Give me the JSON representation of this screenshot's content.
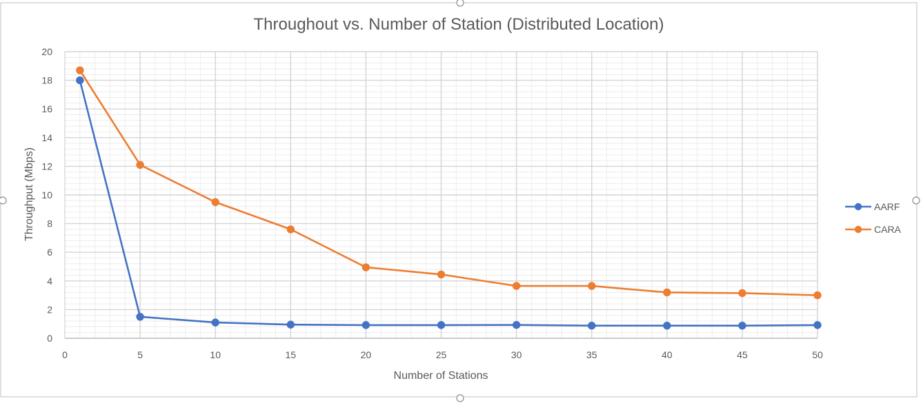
{
  "chart_data": {
    "type": "line",
    "title": "Throughout vs. Number of Station (Distributed Location)",
    "xlabel": "Number of Stations",
    "ylabel": "Throughput (Mbps)",
    "xlim": [
      0,
      50
    ],
    "ylim": [
      0,
      20
    ],
    "x_ticks": [
      0,
      5,
      10,
      15,
      20,
      25,
      30,
      35,
      40,
      45,
      50
    ],
    "y_ticks": [
      0,
      2,
      4,
      6,
      8,
      10,
      12,
      14,
      16,
      18,
      20
    ],
    "grid": true,
    "legend_position": "right",
    "x": [
      1,
      5,
      10,
      15,
      20,
      25,
      30,
      35,
      40,
      45,
      50
    ],
    "series": [
      {
        "name": "AARF",
        "color": "#4472C4",
        "values": [
          18.0,
          1.5,
          1.1,
          0.95,
          0.92,
          0.92,
          0.93,
          0.88,
          0.88,
          0.88,
          0.92
        ]
      },
      {
        "name": "CARA",
        "color": "#ED7D31",
        "values": [
          18.7,
          12.1,
          9.5,
          7.6,
          4.95,
          4.45,
          3.65,
          3.65,
          3.2,
          3.15,
          3.0
        ]
      }
    ]
  }
}
